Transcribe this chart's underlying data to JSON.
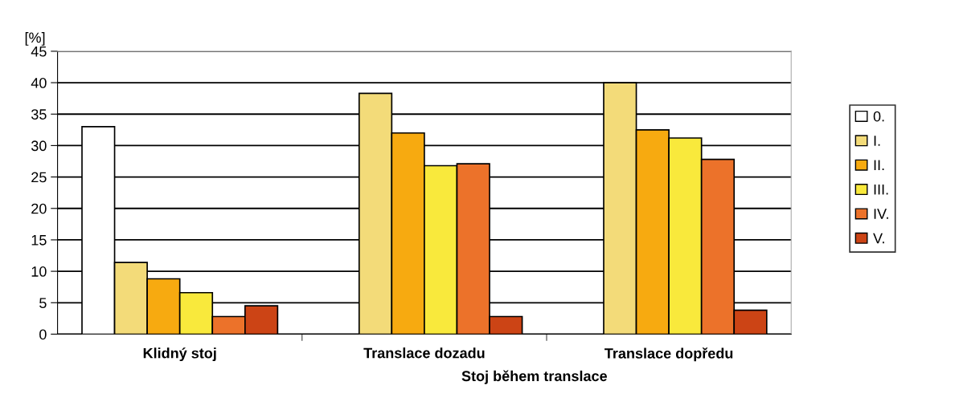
{
  "chart_data": {
    "type": "bar",
    "categories": [
      "Klidný stoj",
      "Translace dozadu",
      "Translace dopředu"
    ],
    "xlabel": "Stoj během translace",
    "ylabel": "[%]",
    "ylim": [
      0,
      45
    ],
    "yticks": [
      0,
      5,
      10,
      15,
      20,
      25,
      30,
      35,
      40,
      45
    ],
    "grid": "y",
    "legend": "right",
    "series": [
      {
        "name": "0.",
        "color": "#ffffff",
        "values": [
          33,
          null,
          null
        ]
      },
      {
        "name": "I.",
        "color": "#f3db79",
        "values": [
          11.4,
          38.3,
          40
        ]
      },
      {
        "name": "II.",
        "color": "#f7aa10",
        "values": [
          8.8,
          32,
          32.5
        ]
      },
      {
        "name": "III.",
        "color": "#f9e93c",
        "values": [
          6.6,
          26.8,
          31.2
        ]
      },
      {
        "name": "IV.",
        "color": "#ec722a",
        "values": [
          2.8,
          27.1,
          27.8
        ]
      },
      {
        "name": "V.",
        "color": "#cc4415",
        "values": [
          4.5,
          2.8,
          3.8
        ]
      }
    ]
  }
}
